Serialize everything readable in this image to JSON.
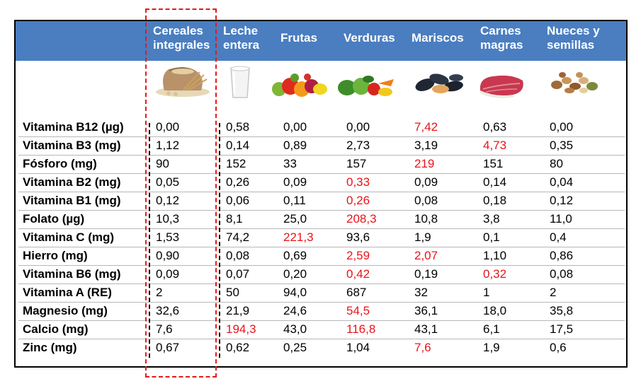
{
  "columns": [
    {
      "key": "cereales",
      "line1": "Cereales",
      "line2": "integrales",
      "image": "wheat-sack-icon"
    },
    {
      "key": "leche",
      "line1": "Leche",
      "line2": "entera",
      "image": "milk-glass-icon"
    },
    {
      "key": "frutas",
      "line1": "Frutas",
      "line2": "",
      "image": "fruits-icon"
    },
    {
      "key": "verduras",
      "line1": "Verduras",
      "line2": "",
      "image": "vegetables-icon"
    },
    {
      "key": "mariscos",
      "line1": "Mariscos",
      "line2": "",
      "image": "mussels-icon"
    },
    {
      "key": "carnes",
      "line1": "Carnes",
      "line2": "magras",
      "image": "meat-icon"
    },
    {
      "key": "nueces",
      "line1": "Nueces y",
      "line2": "semillas",
      "image": "nuts-icon"
    }
  ],
  "highlight_color": "#e8141b",
  "header_color": "#4a7ec0",
  "rows": [
    {
      "label": "Vitamina B12 (µg)",
      "values": [
        "0,00",
        "0,58",
        "0,00",
        "0,00",
        "7,42",
        "0,63",
        "0,00"
      ],
      "highlight": [
        4
      ]
    },
    {
      "label": "Vitamina B3 (mg)",
      "values": [
        "1,12",
        "0,14",
        "0,89",
        "2,73",
        "3,19",
        "4,73",
        "0,35"
      ],
      "highlight": [
        5
      ]
    },
    {
      "label": "Fósforo (mg)",
      "values": [
        "90",
        "152",
        "33",
        "157",
        "219",
        "151",
        "80"
      ],
      "highlight": [
        4
      ]
    },
    {
      "label": "Vitamina B2 (mg)",
      "values": [
        "0,05",
        "0,26",
        "0,09",
        "0,33",
        "0,09",
        "0,14",
        "0,04"
      ],
      "highlight": [
        3
      ]
    },
    {
      "label": "Vitamina B1 (mg)",
      "values": [
        "0,12",
        "0,06",
        "0,11",
        "0,26",
        "0,08",
        "0,18",
        "0,12"
      ],
      "highlight": [
        3
      ]
    },
    {
      "label": "Folato (µg)",
      "values": [
        "10,3",
        "8,1",
        "25,0",
        "208,3",
        "10,8",
        "3,8",
        "11,0"
      ],
      "highlight": [
        3
      ]
    },
    {
      "label": "Vitamina C (mg)",
      "values": [
        "1,53",
        "74,2",
        "221,3",
        "93,6",
        "1,9",
        "0,1",
        "0,4"
      ],
      "highlight": [
        2
      ]
    },
    {
      "label": "Hierro (mg)",
      "values": [
        "0,90",
        "0,08",
        "0,69",
        "2,59",
        "2,07",
        "1,10",
        "0,86"
      ],
      "highlight": [
        3,
        4
      ]
    },
    {
      "label": "Vitamina B6 (mg)",
      "values": [
        "0,09",
        "0,07",
        "0,20",
        "0,42",
        "0,19",
        "0,32",
        "0,08"
      ],
      "highlight": [
        3,
        5
      ]
    },
    {
      "label": "Vitamina A (RE)",
      "values": [
        "2",
        "50",
        "94,0",
        "687",
        "32",
        "1",
        "2"
      ],
      "highlight": []
    },
    {
      "label": "Magnesio (mg)",
      "values": [
        "32,6",
        "21,9",
        "24,6",
        "54,5",
        "36,1",
        "18,0",
        "35,8"
      ],
      "highlight": [
        3
      ]
    },
    {
      "label": "Calcio (mg)",
      "values": [
        "7,6",
        "194,3",
        "43,0",
        "116,8",
        "43,1",
        "6,1",
        "17,5"
      ],
      "highlight": [
        1,
        3
      ]
    },
    {
      "label": "Zinc (mg)",
      "values": [
        "0,67",
        "0,62",
        "0,25",
        "1,04",
        "7,6",
        "1,9",
        "0,6"
      ],
      "highlight": [
        4
      ]
    }
  ]
}
